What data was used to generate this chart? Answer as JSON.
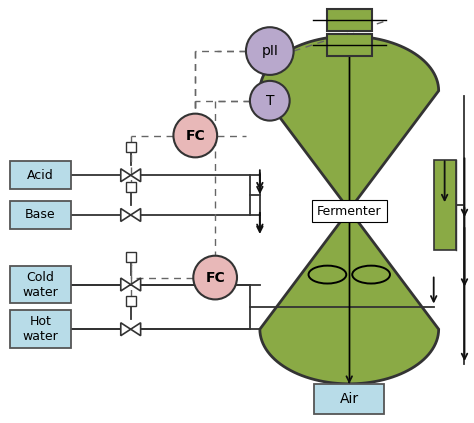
{
  "bg_color": "#ffffff",
  "fermenter_color": "#8aaa45",
  "fermenter_edge": "#333333",
  "box_color": "#b8dce8",
  "box_edge": "#555555",
  "sensor_pH_color": "#b8a8cc",
  "sensor_T_color": "#b8a8cc",
  "fc_color": "#e8b8b8",
  "motor_box_color": "#8aaa45",
  "motor_box_edge": "#333333",
  "line_color": "#333333",
  "dashed_color": "#666666",
  "arrow_color": "#111111",
  "labels": {
    "acid": "Acid",
    "base": "Base",
    "cold_water": "Cold\nwater",
    "hot_water": "Hot\nwater",
    "air": "Air",
    "fermenter": "Fermenter",
    "fc1": "FC",
    "fc2": "FC",
    "pH": "pII",
    "T": "T"
  }
}
